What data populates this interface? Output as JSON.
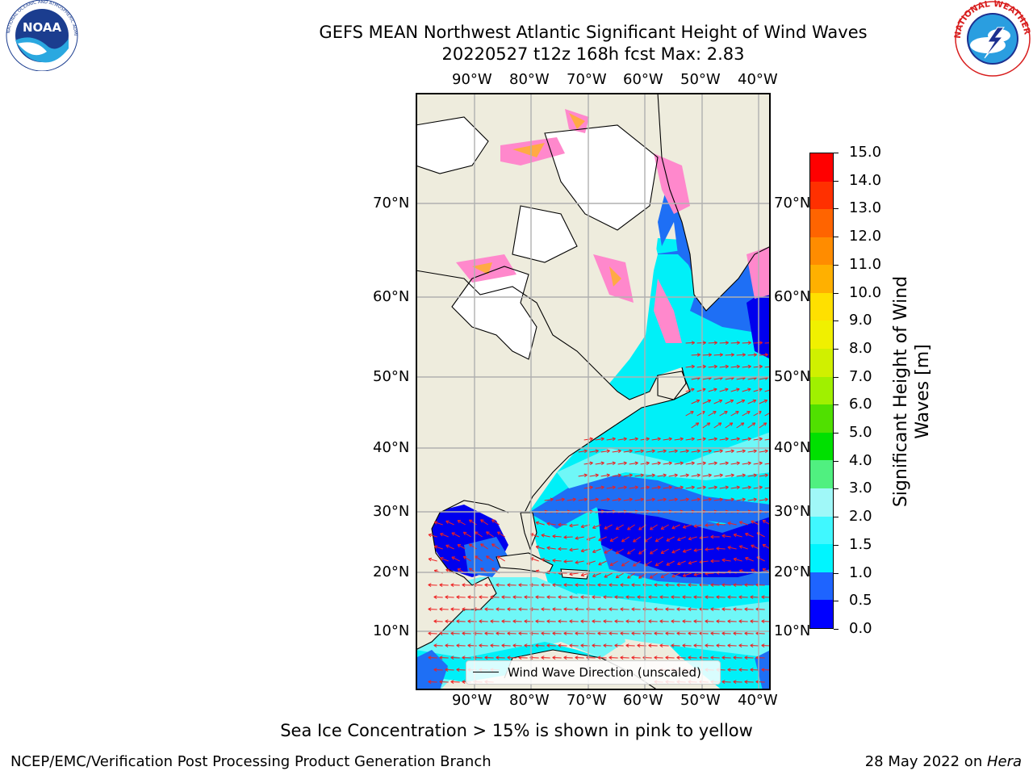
{
  "header": {
    "title_line1": "GEFS MEAN Northwest Atlantic Significant Height of Wind Waves",
    "title_line2": "20220527 t12z 168h fcst   Max: 2.83"
  },
  "logos": {
    "left": "NOAA",
    "left_ring": "NATIONAL OCEANIC AND ATMOSPHERIC ADMINISTRATION · U.S. DEPARTMENT OF COMMERCE",
    "right_ring": "NATIONAL WEATHER SERVICE"
  },
  "map": {
    "lon_labels": [
      "90°W",
      "80°W",
      "70°W",
      "60°W",
      "50°W",
      "40°W"
    ],
    "lat_labels": [
      "70°N",
      "60°N",
      "50°N",
      "40°N",
      "30°N",
      "20°N",
      "10°N"
    ],
    "colors": {
      "land": "#eeecdd",
      "ocean_deep": "#0000ee",
      "ocean_mid": "#1e6ff5",
      "ocean_cyan": "#00f0f8",
      "ocean_light": "#6ff7f7",
      "ice": "#ff88cc",
      "arrow": "#ee2020"
    }
  },
  "legend": {
    "label": "Wind Wave Direction (unscaled)"
  },
  "colorbar": {
    "label": "Significant Height of Wind Waves [m]",
    "ticks": [
      "15.0",
      "14.0",
      "13.0",
      "12.0",
      "11.0",
      "10.0",
      "9.0",
      "8.0",
      "7.0",
      "6.0",
      "5.0",
      "4.0",
      "3.0",
      "2.0",
      "1.5",
      "1.0",
      "0.5",
      "0.0"
    ],
    "colors": [
      "#0000ff",
      "#1e64ff",
      "#00f5ff",
      "#40f8ff",
      "#a0f8f8",
      "#50f080",
      "#00e000",
      "#50e000",
      "#a0f000",
      "#d0f000",
      "#f0f000",
      "#ffe000",
      "#ffb000",
      "#ff8c00",
      "#ff6400",
      "#ff3000",
      "#ff0000"
    ]
  },
  "notes": {
    "ice_note": "Sea Ice Concentration > 15% is shown in pink to yellow",
    "branch": "NCEP/EMC/Verification Post Processing Product Generation Branch",
    "date": "28 May 2022 on ",
    "host": "Hera"
  }
}
